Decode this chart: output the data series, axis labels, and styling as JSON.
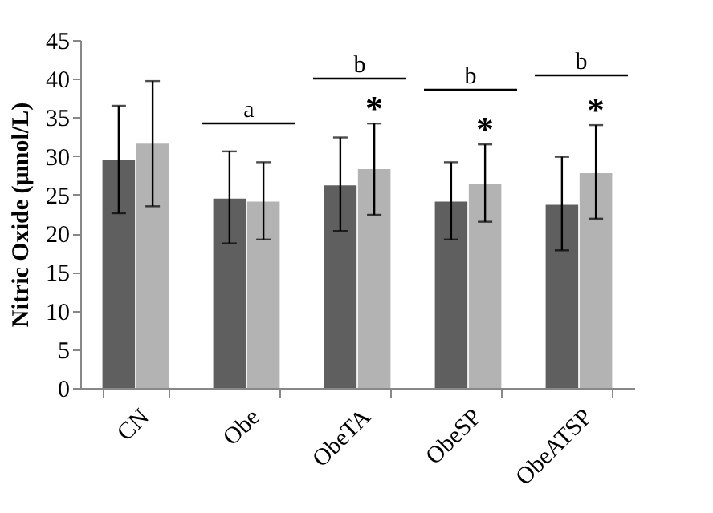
{
  "chart_data": {
    "type": "bar",
    "ylabel": "Nitric Oxide (μmol/L)",
    "categories": [
      "CN",
      "Obe",
      "ObeTA",
      "ObeSP",
      "ObeATSP"
    ],
    "series": [
      {
        "color": "#5f5f5f",
        "values": [
          29.5,
          24.5,
          26.2,
          24.1,
          23.7
        ],
        "errors": [
          [
            22.6,
            36.5
          ],
          [
            18.7,
            30.6
          ],
          [
            20.3,
            32.4
          ],
          [
            19.2,
            29.2
          ],
          [
            17.8,
            29.9
          ]
        ]
      },
      {
        "color": "#b3b3b3",
        "values": [
          31.6,
          24.1,
          28.3,
          26.4,
          27.8
        ],
        "errors": [
          [
            23.5,
            39.7
          ],
          [
            19.2,
            29.2
          ],
          [
            22.4,
            34.2
          ],
          [
            21.5,
            31.5
          ],
          [
            21.9,
            34.0
          ]
        ],
        "value_labels": [
          null,
          null,
          "*",
          "*",
          "*"
        ]
      }
    ],
    "annotations": [
      "a",
      "b",
      "b",
      "b"
    ],
    "ylim": [
      0,
      45
    ],
    "yticks": [
      0,
      5,
      10,
      15,
      20,
      25,
      30,
      35,
      40,
      45
    ],
    "grid": false,
    "legend": false
  }
}
